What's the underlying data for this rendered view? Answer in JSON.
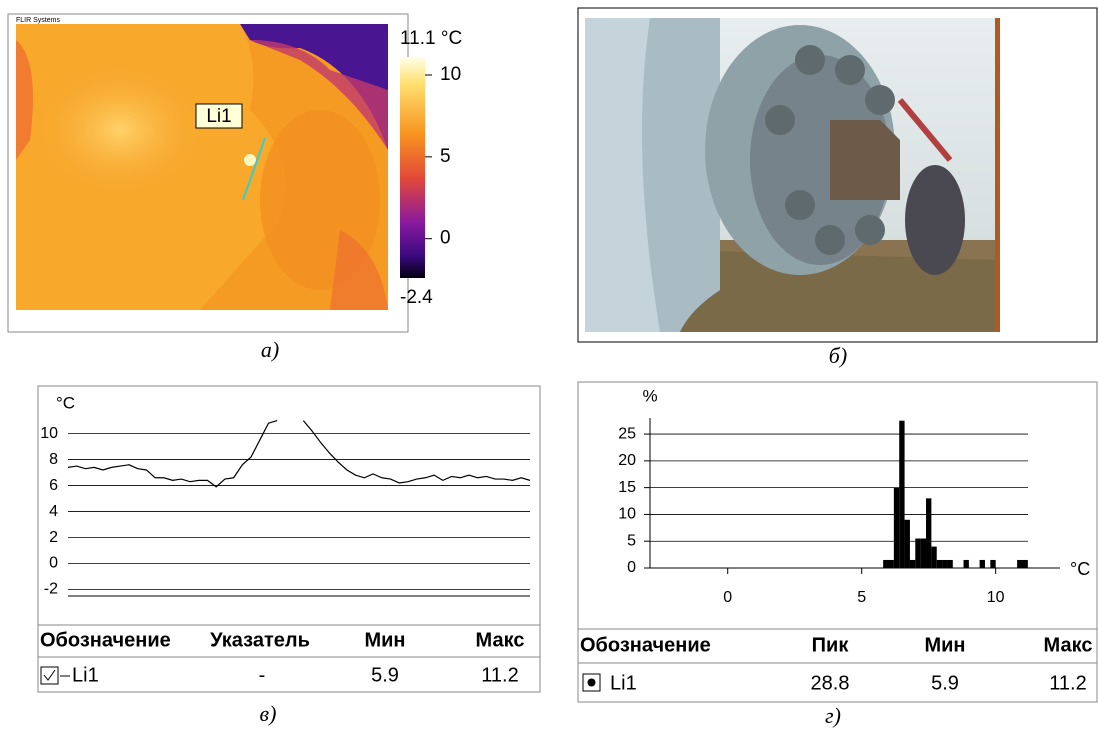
{
  "thermal": {
    "brand": "FLIR Systems",
    "marker": "Li1",
    "colorbar": {
      "lim": [
        -2.4,
        11.1
      ],
      "lim_labels": [
        "-2.4",
        "11.1 °C"
      ],
      "ticks": [
        10,
        5,
        0
      ]
    },
    "caption": "а)"
  },
  "photo": {
    "caption": "б)"
  },
  "chart_data": [
    {
      "type": "line",
      "y_label": "°C",
      "color": "#000000",
      "grid": true,
      "values": [
        7.4,
        7.5,
        7.3,
        7.4,
        7.2,
        7.4,
        7.5,
        7.6,
        7.3,
        7.2,
        6.6,
        6.6,
        6.4,
        6.5,
        6.3,
        6.4,
        6.4,
        5.9,
        6.5,
        6.6,
        7.6,
        8.2,
        9.5,
        10.8,
        11.0,
        null,
        null,
        11.0,
        10.2,
        9.3,
        8.5,
        7.8,
        7.2,
        6.8,
        6.6,
        6.9,
        6.6,
        6.5,
        6.2,
        6.3,
        6.5,
        6.6,
        6.8,
        6.4,
        6.7,
        6.6,
        6.8,
        6.6,
        6.7,
        6.5,
        6.5,
        6.4,
        6.6,
        6.4
      ],
      "ylim": [
        -2.5,
        11.2
      ],
      "yticks": [
        10,
        8,
        6,
        4,
        2,
        0,
        -2
      ],
      "table": {
        "header": [
          "Обозначение",
          "Указатель",
          "Мин",
          "Макс"
        ],
        "rows": [
          [
            "Li1",
            "-",
            "5.9",
            "11.2"
          ]
        ]
      },
      "caption": "в)"
    },
    {
      "type": "histogram",
      "y_label": "%",
      "x_label": "°C",
      "color": "#000000",
      "grid": true,
      "bins": [
        5.8,
        6.0,
        6.2,
        6.4,
        6.6,
        6.8,
        7.0,
        7.2,
        7.4,
        7.6,
        7.8,
        8.0,
        8.2,
        8.4,
        8.6,
        8.8,
        9.0,
        9.2,
        9.4,
        9.6,
        9.8,
        10.0,
        10.2,
        10.4,
        10.6,
        10.8,
        11.0,
        11.2
      ],
      "values": [
        1.5,
        1.5,
        15,
        27.5,
        9,
        1.5,
        5.5,
        5.5,
        13,
        4,
        1.5,
        1.5,
        1.5,
        0,
        0,
        1.5,
        0,
        0,
        1.5,
        0,
        1.5,
        0,
        0,
        0,
        0,
        1.5,
        1.5
      ],
      "xlim": [
        -2.9,
        12.4
      ],
      "ylim": [
        0,
        28
      ],
      "xticks": [
        0,
        5,
        10
      ],
      "yticks": [
        0,
        5,
        10,
        15,
        20,
        25
      ],
      "table": {
        "header": [
          "Обозначение",
          "Пик",
          "Мин",
          "Макс"
        ],
        "rows": [
          [
            "Li1",
            "28.8",
            "5.9",
            "11.2"
          ]
        ]
      },
      "caption": "г)"
    }
  ]
}
